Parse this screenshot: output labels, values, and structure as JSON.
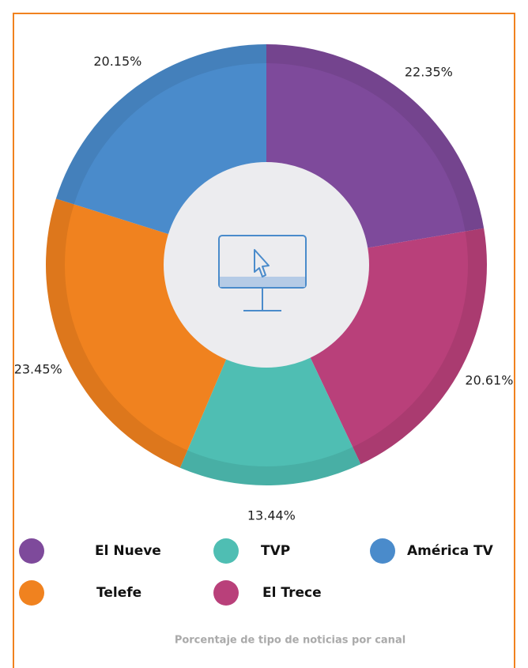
{
  "chart_data": {
    "type": "pie",
    "caption": "Porcentaje de tipo de noticias por canal",
    "categories": [
      "El Nueve",
      "El Trece",
      "TVP",
      "Telefe",
      "América TV"
    ],
    "values": [
      22.35,
      20.61,
      13.44,
      23.45,
      20.15
    ],
    "value_labels": [
      "22.35%",
      "20.61%",
      "13.44%",
      "23.45%",
      "20.15%"
    ],
    "colors": [
      "#7e4a9b",
      "#b9407a",
      "#4fbeb3",
      "#f0821f",
      "#4a8bcb"
    ],
    "legend": "bottom"
  }
}
